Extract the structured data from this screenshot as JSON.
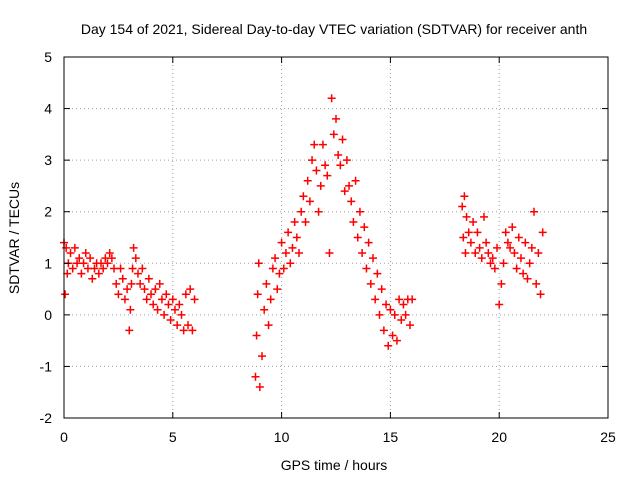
{
  "chart_data": {
    "type": "scatter",
    "title": "Day 154 of 2021, Sidereal Day-to-day VTEC variation (SDTVAR) for receiver anth",
    "xlabel": "GPS time / hours",
    "ylabel": "SDTVAR / TECUs",
    "xlim": [
      0,
      25
    ],
    "ylim": [
      -2,
      5
    ],
    "xticks": [
      0,
      5,
      10,
      15,
      20,
      25
    ],
    "yticks": [
      -2,
      -1,
      0,
      1,
      2,
      3,
      4,
      5
    ],
    "grid": true,
    "marker": "+",
    "series_color": "#ff0000",
    "series": [
      {
        "name": "SDTVAR",
        "x": [
          0.0,
          0.05,
          0.1,
          0.15,
          0.2,
          0.3,
          0.4,
          0.5,
          0.6,
          0.7,
          0.8,
          0.9,
          1.0,
          1.1,
          1.2,
          1.3,
          1.4,
          1.5,
          1.6,
          1.7,
          1.8,
          1.9,
          2.0,
          2.1,
          2.2,
          2.3,
          2.4,
          2.5,
          2.6,
          2.7,
          2.8,
          2.9,
          3.0,
          3.05,
          3.1,
          3.15,
          3.2,
          3.3,
          3.4,
          3.5,
          3.6,
          3.7,
          3.8,
          3.9,
          4.0,
          4.1,
          4.2,
          4.3,
          4.4,
          4.5,
          4.6,
          4.7,
          4.8,
          4.9,
          5.0,
          5.1,
          5.2,
          5.3,
          5.4,
          5.5,
          5.6,
          5.7,
          5.8,
          5.9,
          6.0,
          8.8,
          8.85,
          8.9,
          8.95,
          9.0,
          9.1,
          9.2,
          9.3,
          9.4,
          9.5,
          9.6,
          9.7,
          9.8,
          9.9,
          10.0,
          10.1,
          10.2,
          10.3,
          10.4,
          10.5,
          10.6,
          10.7,
          10.8,
          10.9,
          11.0,
          11.1,
          11.2,
          11.3,
          11.4,
          11.5,
          11.6,
          11.7,
          11.8,
          11.9,
          12.0,
          12.1,
          12.2,
          12.3,
          12.4,
          12.5,
          12.6,
          12.7,
          12.8,
          12.9,
          13.0,
          13.1,
          13.2,
          13.3,
          13.4,
          13.5,
          13.6,
          13.7,
          13.8,
          13.9,
          14.0,
          14.1,
          14.2,
          14.3,
          14.4,
          14.5,
          14.6,
          14.7,
          14.8,
          14.9,
          15.0,
          15.1,
          15.2,
          15.3,
          15.4,
          15.5,
          15.6,
          15.7,
          15.8,
          15.9,
          16.0,
          18.3,
          18.35,
          18.4,
          18.45,
          18.5,
          18.6,
          18.7,
          18.8,
          18.9,
          19.0,
          19.1,
          19.2,
          19.3,
          19.4,
          19.5,
          19.6,
          19.7,
          19.8,
          19.9,
          20.0,
          20.1,
          20.2,
          20.3,
          20.4,
          20.5,
          20.6,
          20.7,
          20.8,
          20.9,
          21.0,
          21.1,
          21.2,
          21.3,
          21.4,
          21.5,
          21.6,
          21.7,
          21.8,
          21.9,
          22.0
        ],
        "y": [
          1.4,
          0.4,
          1.3,
          0.8,
          1.0,
          1.2,
          0.9,
          1.3,
          1.0,
          1.1,
          0.8,
          1.0,
          1.2,
          0.9,
          1.1,
          0.7,
          0.9,
          1.0,
          0.8,
          1.0,
          0.9,
          1.1,
          1.0,
          1.2,
          1.1,
          0.9,
          0.6,
          0.4,
          0.9,
          0.7,
          0.3,
          0.5,
          -0.3,
          0.1,
          0.6,
          0.9,
          1.3,
          1.1,
          0.8,
          0.6,
          0.9,
          0.5,
          0.3,
          0.7,
          0.4,
          0.2,
          0.5,
          0.1,
          0.6,
          0.3,
          0.0,
          0.4,
          0.2,
          -0.1,
          0.3,
          0.1,
          -0.2,
          0.2,
          0.0,
          -0.3,
          0.4,
          -0.2,
          0.5,
          -0.3,
          0.3,
          -1.2,
          -0.4,
          0.4,
          1.0,
          -1.4,
          -0.8,
          0.1,
          0.6,
          -0.2,
          0.3,
          0.9,
          1.1,
          0.5,
          0.8,
          1.4,
          0.9,
          1.2,
          1.6,
          1.0,
          1.3,
          1.8,
          1.5,
          1.2,
          2.0,
          2.3,
          1.8,
          2.6,
          2.2,
          3.0,
          3.3,
          2.8,
          2.0,
          2.5,
          3.3,
          2.9,
          2.7,
          1.2,
          4.2,
          3.5,
          3.8,
          3.1,
          2.9,
          3.4,
          2.4,
          3.0,
          2.5,
          2.2,
          1.8,
          2.6,
          1.5,
          2.0,
          1.2,
          1.7,
          0.9,
          1.4,
          0.6,
          1.1,
          0.3,
          0.8,
          0.0,
          0.5,
          -0.3,
          0.2,
          -0.6,
          0.1,
          -0.4,
          0.0,
          -0.5,
          0.3,
          -0.1,
          0.2,
          0.0,
          0.3,
          -0.2,
          0.3,
          2.1,
          1.5,
          2.3,
          1.2,
          1.9,
          1.6,
          1.4,
          1.8,
          1.2,
          1.6,
          1.3,
          1.1,
          1.9,
          1.4,
          1.2,
          1.0,
          1.1,
          0.9,
          1.3,
          0.2,
          0.6,
          1.0,
          1.6,
          1.4,
          1.3,
          1.7,
          1.2,
          0.9,
          1.5,
          1.1,
          0.8,
          1.4,
          0.7,
          1.0,
          1.3,
          2.0,
          0.6,
          1.2,
          0.4,
          1.6
        ]
      }
    ]
  }
}
